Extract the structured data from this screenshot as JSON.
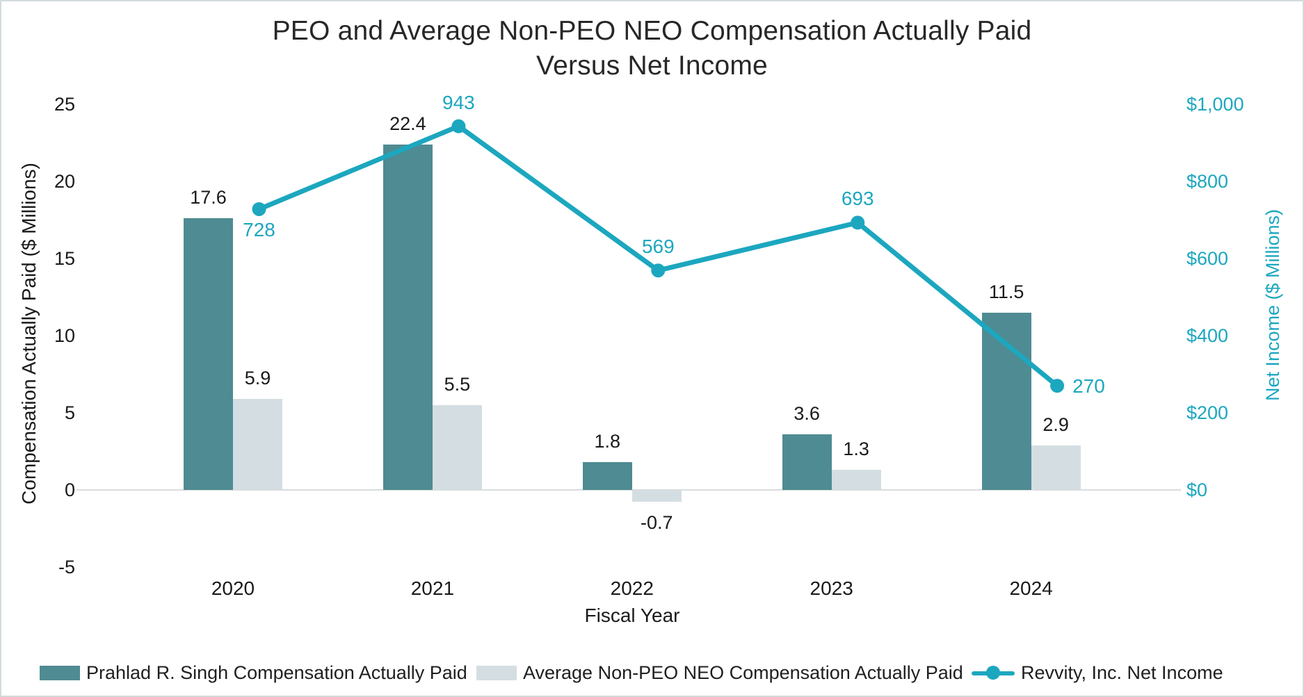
{
  "title": {
    "line1": "PEO and Average Non-PEO NEO Compensation Actually Paid",
    "line2": "Versus Net Income"
  },
  "axes": {
    "left": {
      "title": "Compensation Actually Paid ($ Millions)",
      "ticks": [
        {
          "label": "25",
          "value": 25
        },
        {
          "label": "20",
          "value": 20
        },
        {
          "label": "15",
          "value": 15
        },
        {
          "label": "10",
          "value": 10
        },
        {
          "label": "5",
          "value": 5
        },
        {
          "label": "0",
          "value": 0
        },
        {
          "label": "-5",
          "value": -5
        }
      ]
    },
    "right": {
      "title": "Net Income ($ Millions)",
      "ticks": [
        {
          "label": "$1,000",
          "value": 1000
        },
        {
          "label": "$800",
          "value": 800
        },
        {
          "label": "$600",
          "value": 600
        },
        {
          "label": "$400",
          "value": 400
        },
        {
          "label": "$200",
          "value": 200
        },
        {
          "label": "$0",
          "value": 0
        }
      ]
    },
    "x": {
      "title": "Fiscal Year"
    }
  },
  "chart_data": {
    "type": "combo",
    "title": "PEO and Average Non-PEO NEO Compensation Actually Paid Versus Net Income",
    "categories": [
      "2020",
      "2021",
      "2022",
      "2023",
      "2024"
    ],
    "series": [
      {
        "name": "Prahlad R. Singh Compensation Actually Paid",
        "type": "bar",
        "axis": "left",
        "color": "#4f8b93",
        "values": [
          17.6,
          22.4,
          1.8,
          3.6,
          11.5
        ],
        "data_labels": [
          "17.6",
          "22.4",
          "1.8",
          "3.6",
          "11.5"
        ]
      },
      {
        "name": "Average Non-PEO NEO Compensation Actually Paid",
        "type": "bar",
        "axis": "left",
        "color": "#d4dee2",
        "values": [
          5.9,
          5.5,
          -0.7,
          1.3,
          2.9
        ],
        "data_labels": [
          "5.9",
          "5.5",
          "-0.7",
          "1.3",
          "2.9"
        ]
      },
      {
        "name": "Revvity, Inc. Net Income",
        "type": "line",
        "axis": "right",
        "color": "#1ca7bf",
        "values": [
          728,
          943,
          569,
          693,
          270
        ],
        "data_labels": [
          "728",
          "943",
          "569",
          "693",
          "270"
        ],
        "label_placement": [
          "below",
          "above",
          "above",
          "above",
          "right"
        ]
      }
    ],
    "xlabel": "Fiscal Year",
    "left_ylabel": "Compensation Actually Paid ($ Millions)",
    "right_ylabel": "Net Income ($ Millions)",
    "left_ylim": [
      -5,
      25
    ],
    "right_ylim": [
      0,
      1000
    ],
    "grid": false,
    "legend_position": "bottom"
  },
  "colors": {
    "dark_bar": "#4f8b93",
    "light_bar": "#d4dee2",
    "line": "#1ca7bf",
    "text": "#1a1a1a",
    "title_text": "#272727",
    "axis_line": "#d9dddd"
  }
}
